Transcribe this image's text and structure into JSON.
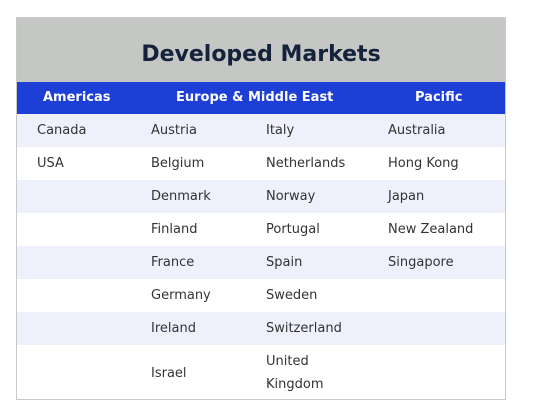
{
  "title": "Developed Markets",
  "headers": {
    "americas": "Americas",
    "emea": "Europe & Middle East",
    "pacific": "Pacific"
  },
  "rows": [
    [
      "Canada",
      "Austria",
      "Italy",
      "Australia"
    ],
    [
      "USA",
      "Belgium",
      "Netherlands",
      "Hong Kong"
    ],
    [
      "",
      "Denmark",
      "Norway",
      "Japan"
    ],
    [
      "",
      "Finland",
      "Portugal",
      "New Zealand"
    ],
    [
      "",
      "France",
      "Spain",
      "Singapore"
    ],
    [
      "",
      "Germany",
      "Sweden",
      ""
    ],
    [
      "",
      "Ireland",
      "Switzerland",
      ""
    ],
    [
      "",
      "Israel",
      "United",
      ""
    ]
  ],
  "last_row_extra": {
    "c3_line2": "Kingdom"
  },
  "colors": {
    "title_bg": "#c5c7c5",
    "header_bg": "#1d3fd6",
    "row_shade": "#eef0fb"
  }
}
